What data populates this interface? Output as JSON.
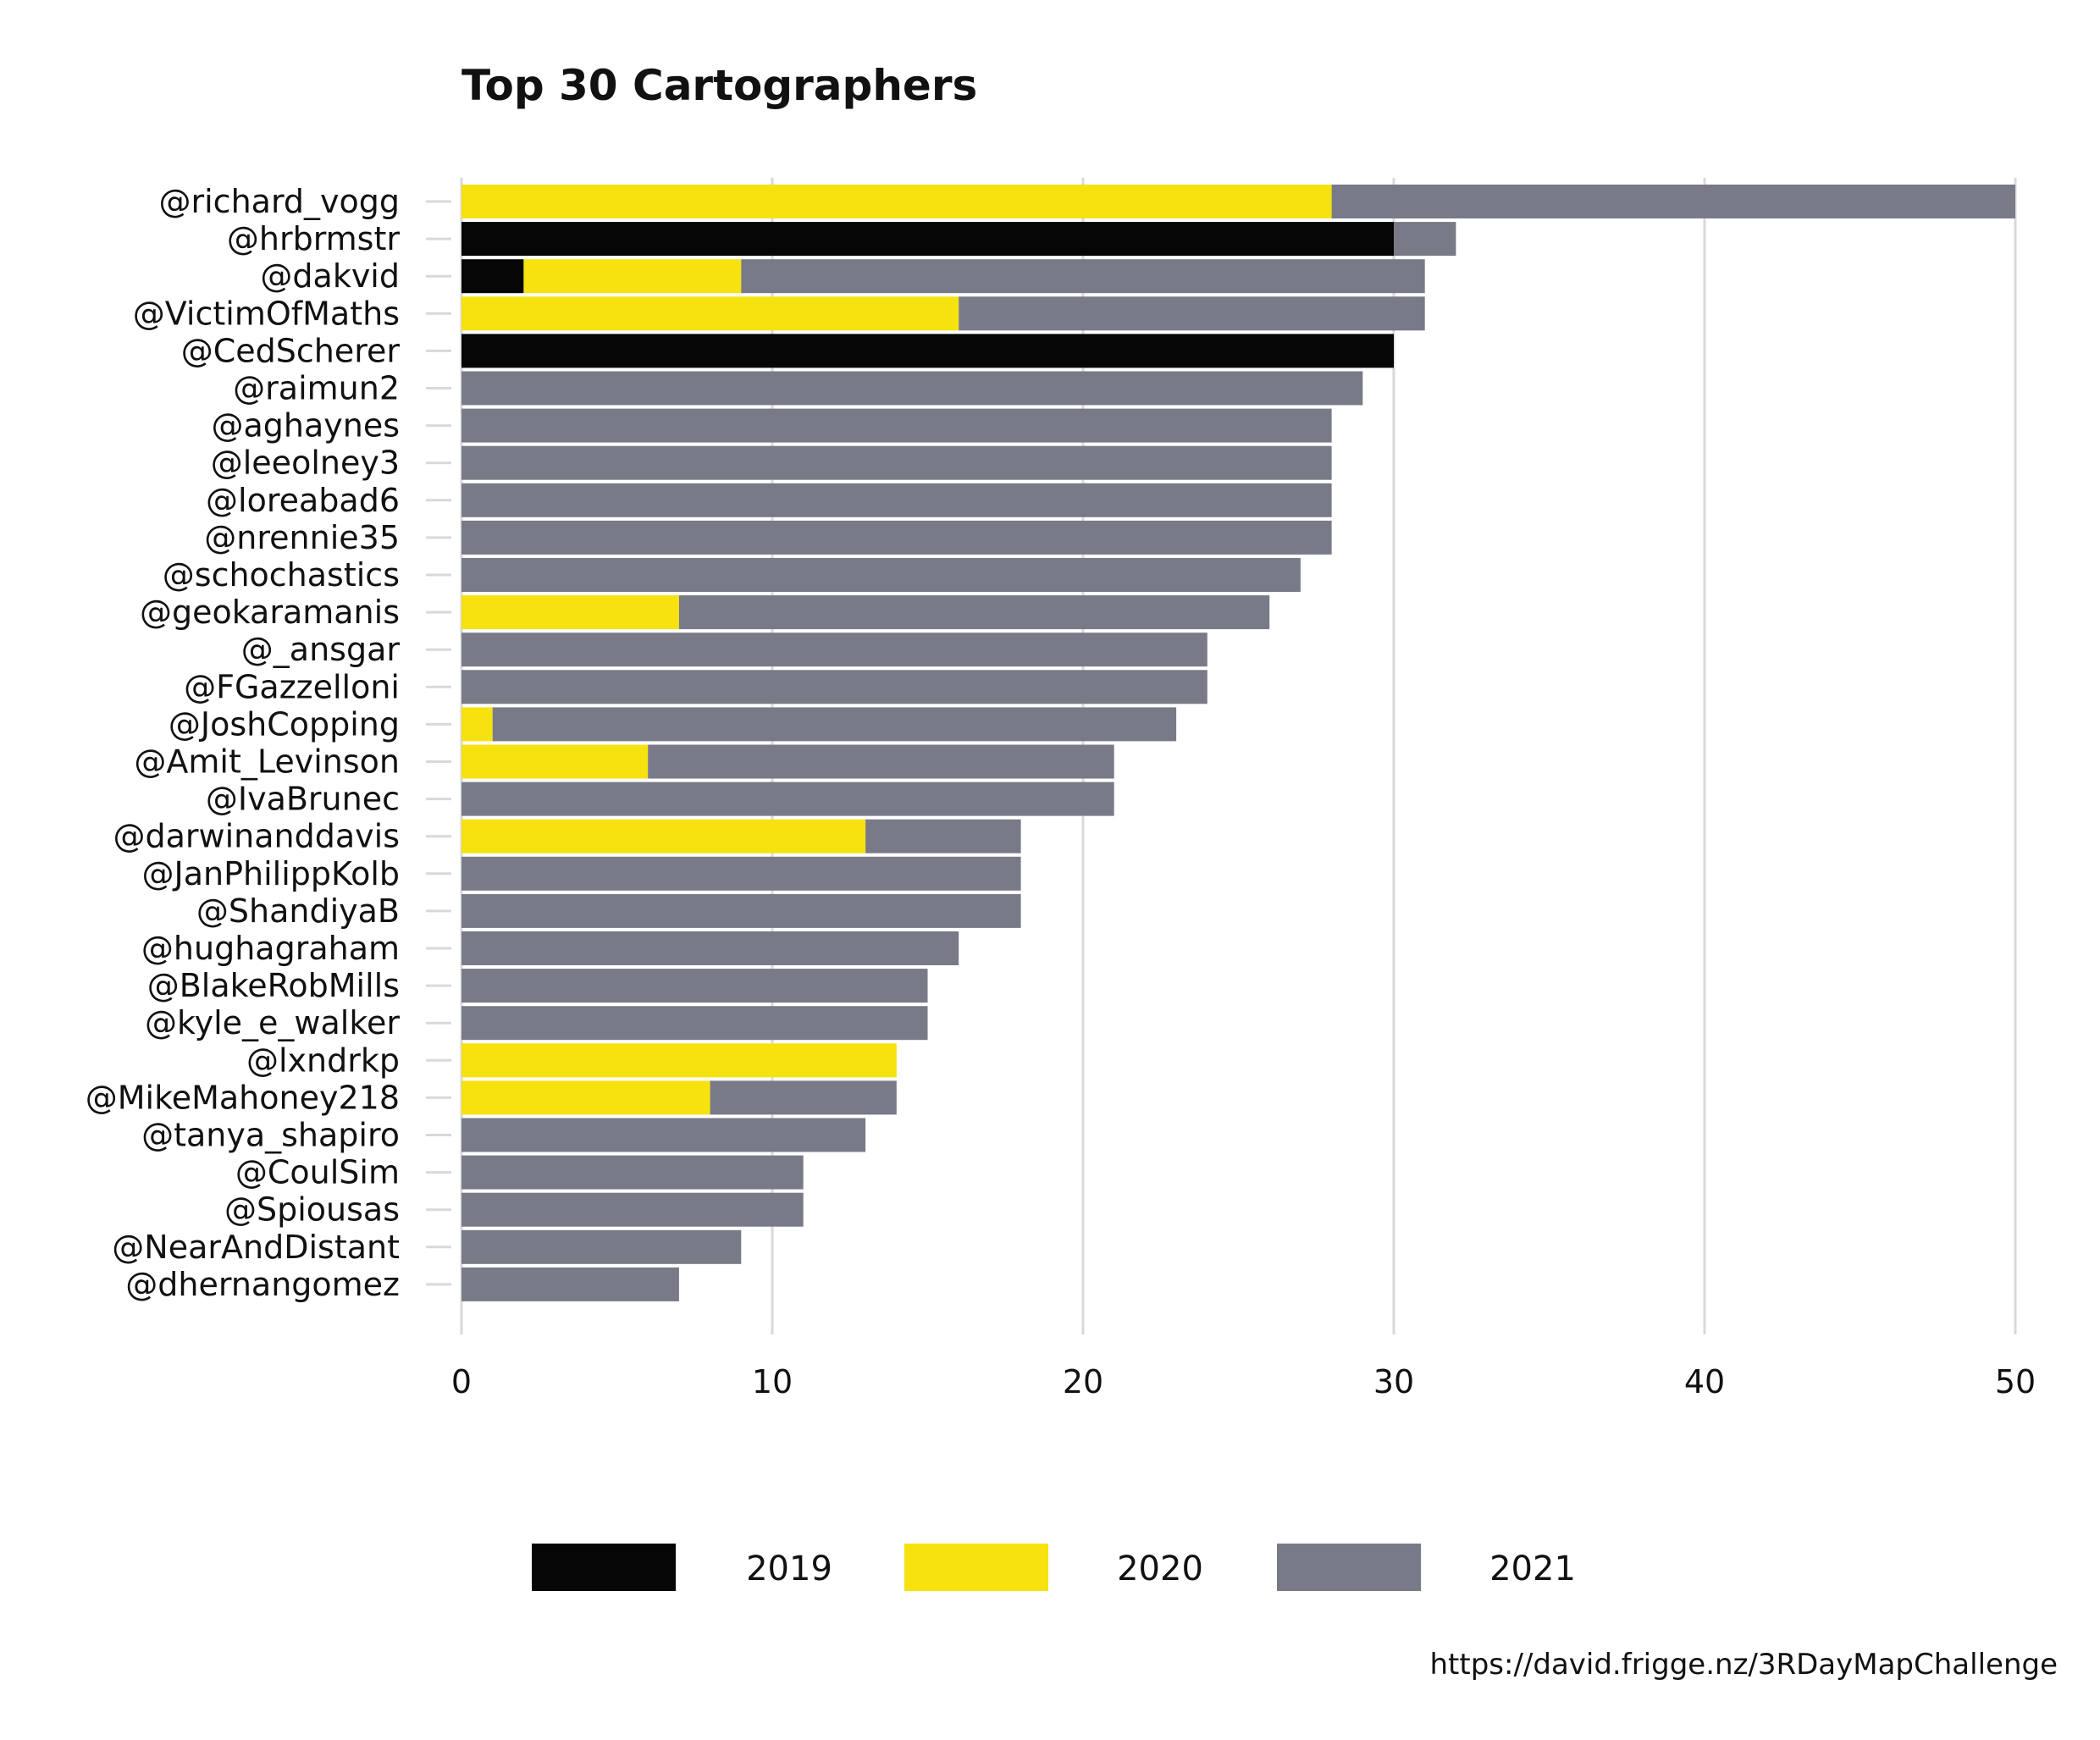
{
  "chart_data": {
    "type": "bar",
    "orientation": "horizontal",
    "stacked": true,
    "title": "Top 30 Cartographers",
    "caption": "https://david.frigge.nz/3RDayMapChallenge",
    "xlim": [
      0,
      50
    ],
    "x_ticks": [
      "0",
      "10",
      "20",
      "30",
      "40",
      "50"
    ],
    "grid": "vertical",
    "legend_position": "bottom",
    "categories": [
      "@richard_vogg",
      "@hrbrmstr",
      "@dakvid",
      "@VictimOfMaths",
      "@CedScherer",
      "@raimun2",
      "@aghaynes",
      "@leeolney3",
      "@loreabad6",
      "@nrennie35",
      "@schochastics",
      "@geokaramanis",
      "@_ansgar",
      "@FGazzelloni",
      "@JoshCopping",
      "@Amit_Levinson",
      "@IvaBrunec",
      "@darwinanddavis",
      "@JanPhilippKolb",
      "@ShandiyaB",
      "@hughagraham",
      "@BlakeRobMills",
      "@kyle_e_walker",
      "@lxndrkp",
      "@MikeMahoney218",
      "@tanya_shapiro",
      "@CoulSim",
      "@Spiousas",
      "@NearAndDistant",
      "@dhernangomez"
    ],
    "series": [
      {
        "name": "2019",
        "color": "#060606",
        "values": [
          0,
          30,
          2,
          0,
          30,
          0,
          0,
          0,
          0,
          0,
          0,
          0,
          0,
          0,
          0,
          0,
          0,
          0,
          0,
          0,
          0,
          0,
          0,
          0,
          0,
          0,
          0,
          0,
          0,
          0
        ]
      },
      {
        "name": "2020",
        "color": "#f6e20f",
        "values": [
          28,
          0,
          7,
          16,
          0,
          0,
          0,
          0,
          0,
          0,
          0,
          7,
          0,
          0,
          1,
          6,
          0,
          13,
          0,
          0,
          0,
          0,
          0,
          14,
          8,
          0,
          0,
          0,
          0,
          0
        ]
      },
      {
        "name": "2021",
        "color": "#797a87",
        "values": [
          22,
          2,
          22,
          15,
          0,
          29,
          28,
          28,
          28,
          28,
          27,
          19,
          24,
          24,
          22,
          15,
          21,
          5,
          18,
          18,
          16,
          15,
          15,
          0,
          6,
          13,
          11,
          11,
          9,
          7
        ]
      }
    ]
  }
}
